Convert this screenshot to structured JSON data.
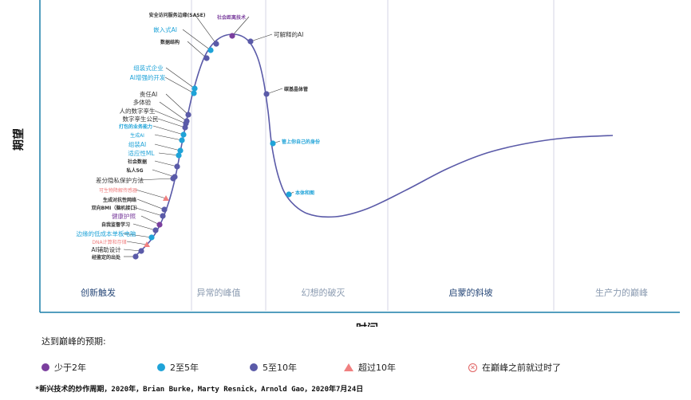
{
  "chart_data": {
    "type": "line",
    "xlabel": "时间",
    "ylabel": "期望",
    "phases": [
      "创新触发",
      "异常的峰值",
      "幻想的破灭",
      "启蒙的斜坡",
      "生产力的巅峰"
    ],
    "technologies": [
      {
        "name": "安全访问服务边缘(SASE)",
        "category": "5至10年",
        "t": 0.33
      },
      {
        "name": "社会距离技术",
        "category": "少于2年",
        "t": 0.36
      },
      {
        "name": "嵌入式AI",
        "category": "2至5年",
        "t": 0.322
      },
      {
        "name": "可解释的AI",
        "category": "5至10年",
        "t": 0.392
      },
      {
        "name": "数据结构",
        "category": "5至10年",
        "t": 0.316
      },
      {
        "name": "组装式企业",
        "category": "2至5年",
        "t": 0.3
      },
      {
        "name": "AI增强的开发",
        "category": "2至5年",
        "t": 0.296
      },
      {
        "name": "碳基晶体管",
        "category": "5至10年",
        "t": 0.42
      },
      {
        "name": "责任AI",
        "category": "5至10年",
        "t": 0.288
      },
      {
        "name": "多体验",
        "category": "5至10年",
        "t": 0.285
      },
      {
        "name": "人的数字孪生",
        "category": "5至10年",
        "t": 0.283
      },
      {
        "name": "数字孪生公民",
        "category": "5至10年",
        "t": 0.281
      },
      {
        "name": "打包的业务能力",
        "category": "2至5年",
        "t": 0.279
      },
      {
        "name": "生成AI",
        "category": "2至5年",
        "t": 0.277
      },
      {
        "name": "组装AI",
        "category": "2至5年",
        "t": 0.275
      },
      {
        "name": "适应性ML",
        "category": "2至5年",
        "t": 0.273
      },
      {
        "name": "社会数据",
        "category": "5至10年",
        "t": 0.271
      },
      {
        "name": "私人5G",
        "category": "5至10年",
        "t": 0.269
      },
      {
        "name": "差分隐私保护方法",
        "category": "5至10年",
        "t": 0.267
      },
      {
        "name": "可生物降解传感器",
        "category": "超过10年",
        "t": 0.263
      },
      {
        "name": "生成对抗性网络",
        "category": "5至10年",
        "t": 0.261
      },
      {
        "name": "双向BMI（脑机接口）",
        "category": "5至10年",
        "t": 0.259
      },
      {
        "name": "健康护照",
        "category": "少于2年",
        "t": 0.256
      },
      {
        "name": "自我监督学习",
        "category": "5至10年",
        "t": 0.254
      },
      {
        "name": "边缘的低成本单板电脑",
        "category": "2至5年",
        "t": 0.25
      },
      {
        "name": "DNA计算和存储",
        "category": "超过10年",
        "t": 0.247
      },
      {
        "name": "AI辅助设计",
        "category": "5至10年",
        "t": 0.242
      },
      {
        "name": "经鉴定的出处",
        "category": "5至10年",
        "t": 0.238
      },
      {
        "name": "管上你自己的身份",
        "category": "2至5年",
        "t": 0.445
      },
      {
        "name": "本体和图",
        "category": "2至5年",
        "t": 0.47
      }
    ],
    "legend": {
      "title": "达到巅峰的预期:",
      "entries": [
        {
          "label": "少于2年",
          "symbol": "dot",
          "color": "#7b3f9e"
        },
        {
          "label": "2至5年",
          "symbol": "dot",
          "color": "#1fa3d8"
        },
        {
          "label": "5至10年",
          "symbol": "dot",
          "color": "#5a5aa8"
        },
        {
          "label": "超过10年",
          "symbol": "triangle",
          "color": "#f08080"
        },
        {
          "label": "在巅峰之前就过时了",
          "symbol": "crossed-circle",
          "color": "#e06060"
        }
      ]
    },
    "grid": false,
    "legend_position": "bottom"
  },
  "footnote": "*新兴技术的炒作周期，2020年，Brian Burke，Marty Resnick，Arnold Gao，2020年7月24日",
  "colors": {
    "curve": "#5a5aa8",
    "axis": "#1a7fa8",
    "lt2": "#7b3f9e",
    "y2_5": "#1fa3d8",
    "y5_10": "#5a5aa8",
    "gt10": "#f08080",
    "obsolete": "#e06060",
    "phase_text": "#2a5a8a"
  }
}
